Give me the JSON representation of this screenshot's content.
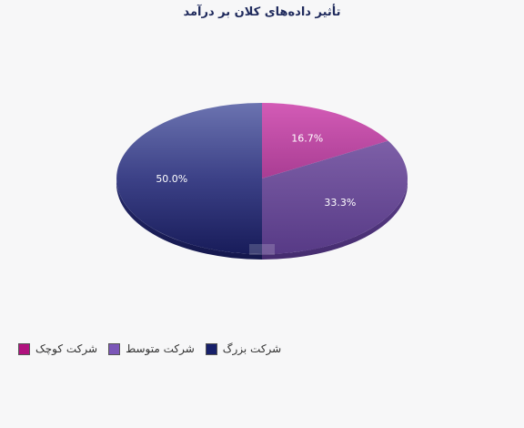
{
  "chart_data": {
    "type": "pie",
    "title": "تأثیر داده‌های کلان بر درآمد",
    "series": [
      {
        "name": "شرکت کوچک",
        "value": 16.7,
        "label": "16.7%",
        "color": "#c0449a"
      },
      {
        "name": "شرکت متوسط",
        "value": 33.3,
        "label": "33.3%",
        "color": "#6f4a9b"
      },
      {
        "name": "شرکت بزرگ",
        "value": 50.0,
        "label": "50.0%",
        "color": "#3b3f86"
      }
    ],
    "legend": "bottom-left",
    "colors": {
      "small_legend": "#b0127e",
      "medium_legend": "#7b56b8",
      "large_legend": "#17206a"
    }
  }
}
